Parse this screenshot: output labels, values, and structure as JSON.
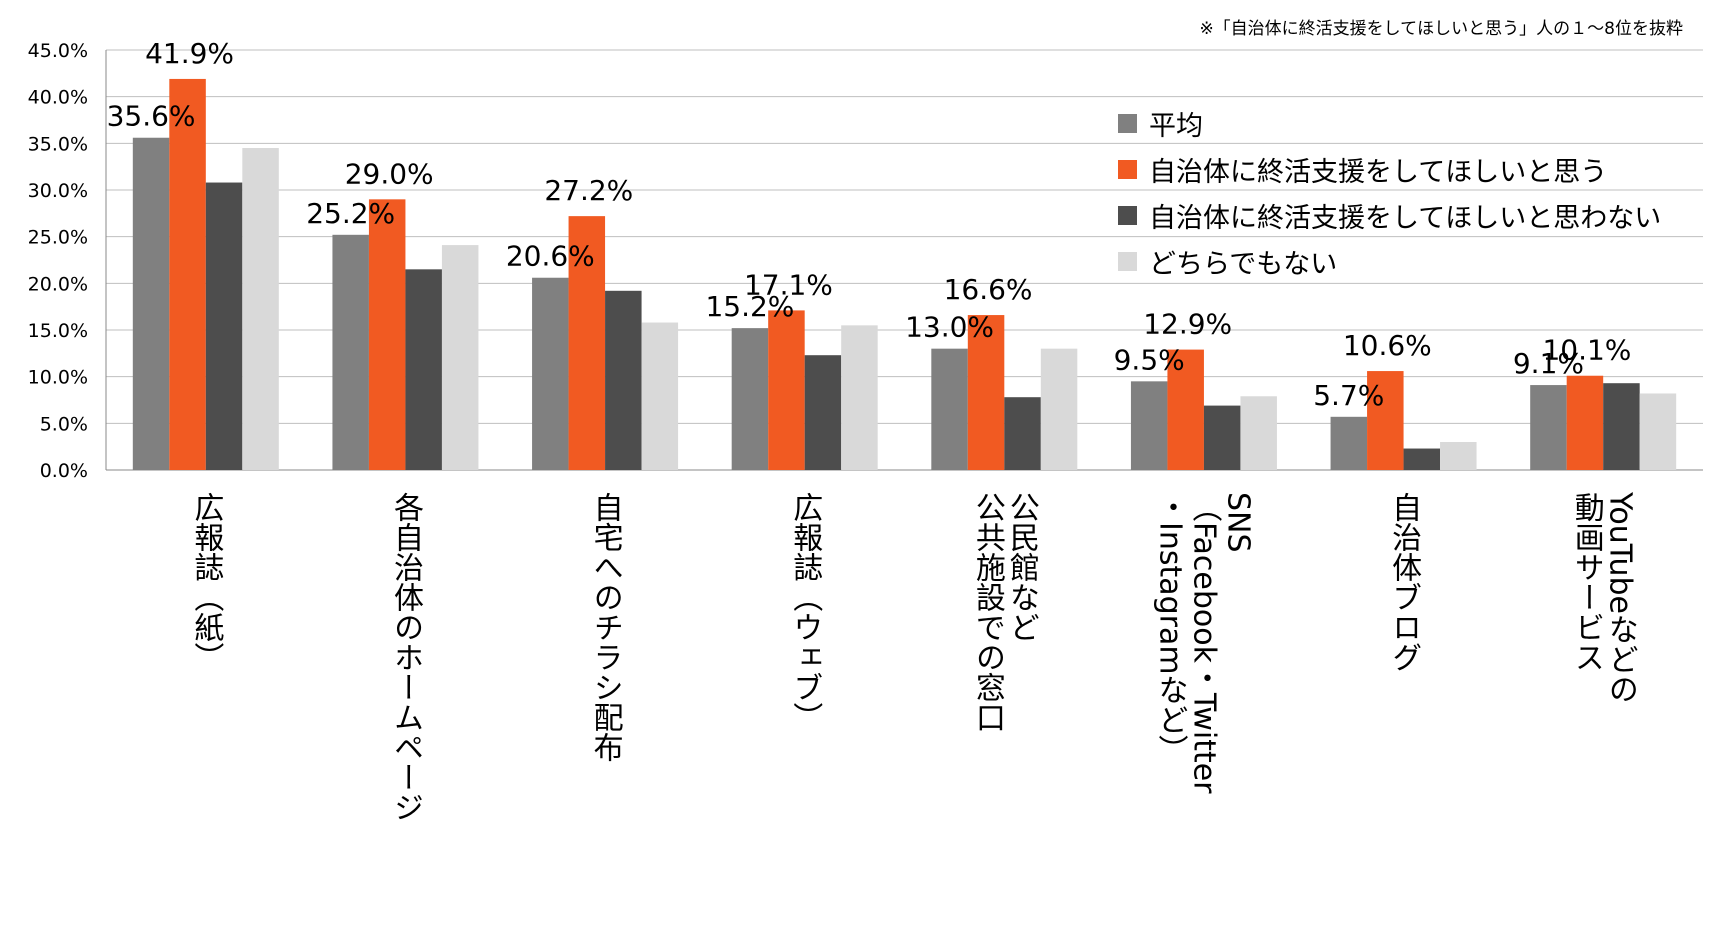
{
  "chart_data": {
    "type": "bar",
    "title": "",
    "note": "※「自治体に終活支援をしてほしいと思う」人の１～8位を抜粋",
    "xlabel": "",
    "ylabel": "",
    "ylim": [
      0,
      45
    ],
    "y_ticks": [
      "0.0%",
      "5.0%",
      "10.0%",
      "15.0%",
      "20.0%",
      "25.0%",
      "30.0%",
      "35.0%",
      "40.0%",
      "45.0%"
    ],
    "grid": true,
    "legend_position": "right",
    "categories": [
      [
        "広報誌（紙）"
      ],
      [
        "各自治体のホームページ"
      ],
      [
        "自宅へのチラシ配布"
      ],
      [
        "広報誌（ウェブ）"
      ],
      [
        "公民館など",
        "公共施設での窓口"
      ],
      [
        "SNS",
        "（Facebook・Twitter",
        "・Instagramなど）"
      ],
      [
        "自治体ブログ"
      ],
      [
        "YouTubeなどの",
        "動画サービス"
      ]
    ],
    "series": [
      {
        "name": "平均",
        "color": "#808080",
        "values": [
          35.6,
          25.2,
          20.6,
          15.2,
          13.0,
          9.5,
          5.7,
          9.1
        ]
      },
      {
        "name": "自治体に終活支援をしてほしいと思う",
        "color": "#f15a22",
        "values": [
          41.9,
          29.0,
          27.2,
          17.1,
          16.6,
          12.9,
          10.6,
          10.1
        ]
      },
      {
        "name": "自治体に終活支援をしてほしいと思わない",
        "color": "#4d4d4d",
        "values": [
          30.8,
          21.5,
          19.2,
          12.3,
          7.8,
          6.9,
          2.3,
          9.3
        ]
      },
      {
        "name": "どちらでもない",
        "color": "#d9d9d9",
        "values": [
          34.5,
          24.1,
          15.8,
          15.5,
          13.0,
          7.9,
          3.0,
          8.2
        ]
      }
    ],
    "data_labels": {
      "平均": [
        "35.6%",
        "25.2%",
        "20.6%",
        "15.2%",
        "13.0%",
        "9.5%",
        "5.7%",
        "9.1%"
      ],
      "自治体に終活支援をしてほしいと思う": [
        "41.9%",
        "29.0%",
        "27.2%",
        "17.1%",
        "16.6%",
        "12.9%",
        "10.6%",
        "10.1%"
      ]
    }
  }
}
